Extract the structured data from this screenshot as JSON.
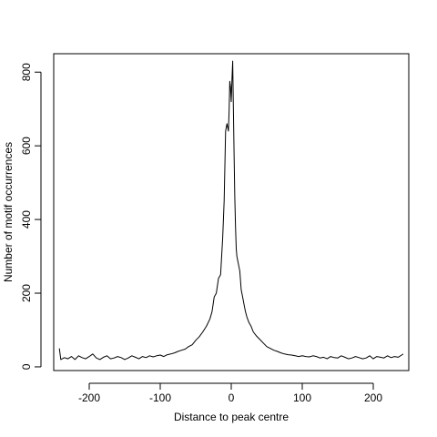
{
  "chart_data": {
    "type": "line",
    "title": "",
    "xlabel": "Distance to peak centre",
    "ylabel": "Number of motif occurrences",
    "xlim": [
      -250,
      250
    ],
    "ylim": [
      -10,
      850
    ],
    "xticks": [
      -200,
      -100,
      0,
      100,
      200
    ],
    "xtick_labels": [
      "-200",
      "-100",
      "0",
      "100",
      "200"
    ],
    "yticks": [
      0,
      200,
      400,
      600,
      800
    ],
    "ytick_labels": [
      "0",
      "200",
      "400",
      "600",
      "800"
    ],
    "grid": false,
    "legend": "none",
    "line_color": "#000000",
    "series": [
      {
        "x": [
          -242,
          -240,
          -235,
          -230,
          -225,
          -220,
          -215,
          -210,
          -205,
          -200,
          -195,
          -190,
          -185,
          -180,
          -175,
          -170,
          -165,
          -160,
          -155,
          -150,
          -145,
          -140,
          -135,
          -130,
          -125,
          -120,
          -115,
          -110,
          -105,
          -100,
          -95,
          -90,
          -85,
          -80,
          -75,
          -70,
          -65,
          -60,
          -55,
          -50,
          -45,
          -40,
          -35,
          -30,
          -27,
          -24,
          -21,
          -18,
          -15,
          -12,
          -10,
          -8,
          -6,
          -4,
          -3,
          -2,
          -1,
          0,
          1,
          2,
          3,
          4,
          5,
          6,
          7,
          8,
          10,
          12,
          14,
          16,
          18,
          20,
          22,
          25,
          28,
          31,
          35,
          40,
          45,
          50,
          55,
          60,
          65,
          70,
          75,
          80,
          85,
          90,
          95,
          100,
          105,
          110,
          115,
          120,
          125,
          130,
          135,
          140,
          145,
          150,
          155,
          160,
          165,
          170,
          175,
          180,
          185,
          190,
          195,
          200,
          205,
          210,
          215,
          220,
          225,
          230,
          235,
          240,
          242
        ],
        "values": [
          50,
          20,
          25,
          22,
          28,
          20,
          30,
          25,
          22,
          28,
          35,
          24,
          20,
          26,
          30,
          22,
          24,
          28,
          25,
          20,
          24,
          30,
          26,
          22,
          28,
          25,
          30,
          27,
          30,
          32,
          28,
          33,
          35,
          38,
          42,
          45,
          48,
          55,
          60,
          72,
          82,
          95,
          110,
          130,
          150,
          190,
          200,
          240,
          250,
          350,
          450,
          640,
          660,
          640,
          700,
          775,
          760,
          720,
          780,
          830,
          710,
          580,
          460,
          380,
          320,
          300,
          280,
          260,
          210,
          190,
          170,
          150,
          135,
          120,
          110,
          95,
          85,
          75,
          65,
          55,
          50,
          45,
          42,
          38,
          35,
          33,
          32,
          30,
          28,
          30,
          28,
          27,
          30,
          28,
          24,
          26,
          22,
          28,
          25,
          24,
          30,
          26,
          22,
          24,
          28,
          25,
          22,
          24,
          30,
          22,
          28,
          26,
          24,
          30,
          25,
          28,
          26,
          32,
          35
        ]
      }
    ]
  }
}
